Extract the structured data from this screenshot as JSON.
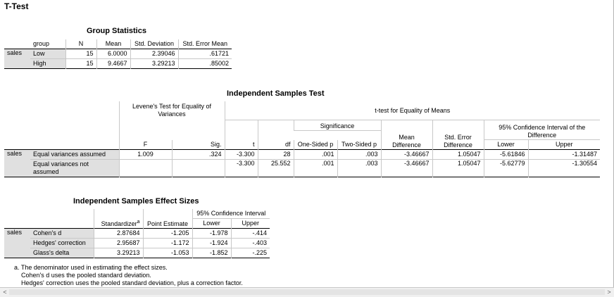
{
  "page_title": "T-Test",
  "group_stats": {
    "title": "Group Statistics",
    "headers": [
      "group",
      "N",
      "Mean",
      "Std. Deviation",
      "Std. Error Mean"
    ],
    "var": "sales",
    "rows": [
      {
        "group": "Low",
        "n": "15",
        "mean": "6.0000",
        "sd": "2.39046",
        "se": ".61721"
      },
      {
        "group": "High",
        "n": "15",
        "mean": "9.4667",
        "sd": "3.29213",
        "se": ".85002"
      }
    ]
  },
  "ind_test": {
    "title": "Independent Samples Test",
    "levene_header": "Levene's Test for Equality of Variances",
    "ttest_header": "t-test for Equality of Means",
    "significance_header": "Significance",
    "mean_diff_header": "Mean Difference",
    "se_diff_header": "Std. Error Difference",
    "ci_header": "95% Confidence Interval of the Difference",
    "col": {
      "f": "F",
      "sig": "Sig.",
      "t": "t",
      "df": "df",
      "one_p": "One-Sided p",
      "two_p": "Two-Sided p",
      "lower": "Lower",
      "upper": "Upper"
    },
    "var": "sales",
    "rows": [
      {
        "label": "Equal variances assumed",
        "f": "1.009",
        "sig": ".324",
        "t": "-3.300",
        "df": "28",
        "one_p": ".001",
        "two_p": ".003",
        "md": "-3.46667",
        "sed": "1.05047",
        "lower": "-5.61846",
        "upper": "-1.31487"
      },
      {
        "label": "Equal variances not assumed",
        "f": "",
        "sig": "",
        "t": "-3.300",
        "df": "25.552",
        "one_p": ".001",
        "two_p": ".003",
        "md": "-3.46667",
        "sed": "1.05047",
        "lower": "-5.62779",
        "upper": "-1.30554"
      }
    ]
  },
  "effect": {
    "title": "Independent Samples Effect Sizes",
    "ci_header": "95% Confidence Interval",
    "col": {
      "std": "Standardizer",
      "std_sup": "a",
      "pe": "Point Estimate",
      "lower": "Lower",
      "upper": "Upper"
    },
    "var": "sales",
    "rows": [
      {
        "label": "Cohen's d",
        "std": "2.87684",
        "pe": "-1.205",
        "lower": "-1.978",
        "upper": "-.414"
      },
      {
        "label": "Hedges' correction",
        "std": "2.95687",
        "pe": "-1.172",
        "lower": "-1.924",
        "upper": "-.403"
      },
      {
        "label": "Glass's delta",
        "std": "3.29213",
        "pe": "-1.053",
        "lower": "-1.852",
        "upper": "-.225"
      }
    ],
    "footnotes": [
      "a. The denominator used in estimating the effect sizes.",
      "Cohen's d uses the pooled standard deviation.",
      "Hedges' correction uses the pooled standard deviation, plus a correction factor."
    ]
  },
  "scrollbar": {
    "left_arrow": "<",
    "right_arrow": ">"
  }
}
